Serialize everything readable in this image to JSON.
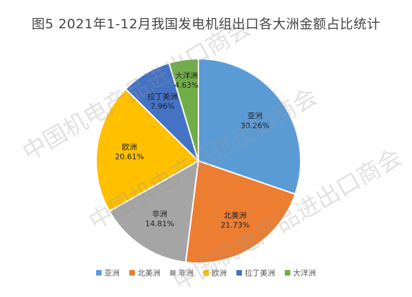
{
  "chart_data": {
    "type": "pie",
    "title": "图5  2021年1-12月我国发电机组出口各大洲金额占比统计",
    "categories": [
      "亚洲",
      "北美洲",
      "非洲",
      "欧洲",
      "拉丁美洲",
      "大洋洲"
    ],
    "values": [
      30.26,
      21.73,
      14.81,
      20.61,
      7.96,
      4.63
    ],
    "value_labels": [
      "30.26%",
      "21.73%",
      "14.81%",
      "20.61%",
      "7.96%",
      "4.63%"
    ],
    "colors": [
      "#5b9bd5",
      "#ed7d31",
      "#a5a5a5",
      "#ffc000",
      "#4472c4",
      "#70ad47"
    ],
    "legend_position": "bottom",
    "start_angle_deg": 0,
    "direction": "clockwise"
  },
  "watermark": {
    "text": "中国机电产品进出口商会"
  }
}
